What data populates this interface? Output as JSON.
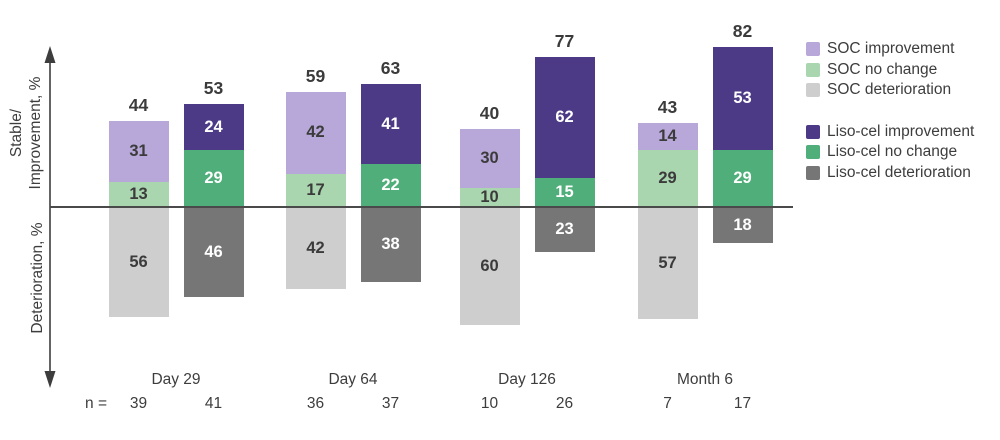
{
  "chart_data": {
    "type": "bar",
    "variant": "diverging-stacked-grouped",
    "unit": "%",
    "axis": {
      "upper_label_line1": "Stable/",
      "upper_label_line2": "Improvement, %",
      "lower_label": "Deterioration, %"
    },
    "n_prefix": "n =",
    "arms": [
      {
        "id": "soc",
        "name": "SOC",
        "label_color": "#3b3b3b",
        "colors": {
          "improvement": "#b7a8d9",
          "no_change": "#a9d5af",
          "deterioration": "#cecece"
        }
      },
      {
        "id": "liso",
        "name": "Liso-cel",
        "label_color": "#ffffff",
        "colors": {
          "improvement": "#4c3a86",
          "no_change": "#4fae79",
          "deterioration": "#767676"
        }
      }
    ],
    "groups": [
      {
        "label": "Day 29",
        "bars": [
          {
            "arm": "soc",
            "n": "39",
            "total": 44,
            "improvement": 31,
            "no_change": 13,
            "deterioration": 56
          },
          {
            "arm": "liso",
            "n": "41",
            "total": 53,
            "improvement": 24,
            "no_change": 29,
            "deterioration": 46
          }
        ]
      },
      {
        "label": "Day 64",
        "bars": [
          {
            "arm": "soc",
            "n": "36",
            "total": 59,
            "improvement": 42,
            "no_change": 17,
            "deterioration": 42
          },
          {
            "arm": "liso",
            "n": "37",
            "total": 63,
            "improvement": 41,
            "no_change": 22,
            "deterioration": 38
          }
        ]
      },
      {
        "label": "Day 126",
        "bars": [
          {
            "arm": "soc",
            "n": "10",
            "total": 40,
            "improvement": 30,
            "no_change": 10,
            "deterioration": 60
          },
          {
            "arm": "liso",
            "n": "26",
            "total": 77,
            "improvement": 62,
            "no_change": 15,
            "deterioration": 23
          }
        ]
      },
      {
        "label": "Month 6",
        "bars": [
          {
            "arm": "soc",
            "n": "7",
            "total": 43,
            "improvement": 14,
            "no_change": 29,
            "deterioration": 57
          },
          {
            "arm": "liso",
            "n": "17",
            "total": 82,
            "improvement": 53,
            "no_change": 29,
            "deterioration": 18
          }
        ]
      }
    ],
    "legend": {
      "groups": [
        [
          {
            "label": "SOC improvement",
            "color": "#b7a8d9"
          },
          {
            "label": "SOC no change",
            "color": "#a9d5af"
          },
          {
            "label": "SOC deterioration",
            "color": "#cecece"
          }
        ],
        [
          {
            "label": "Liso-cel improvement",
            "color": "#4c3a86"
          },
          {
            "label": "Liso-cel no change",
            "color": "#4fae79"
          },
          {
            "label": "Liso-cel deterioration",
            "color": "#767676"
          }
        ]
      ]
    }
  }
}
